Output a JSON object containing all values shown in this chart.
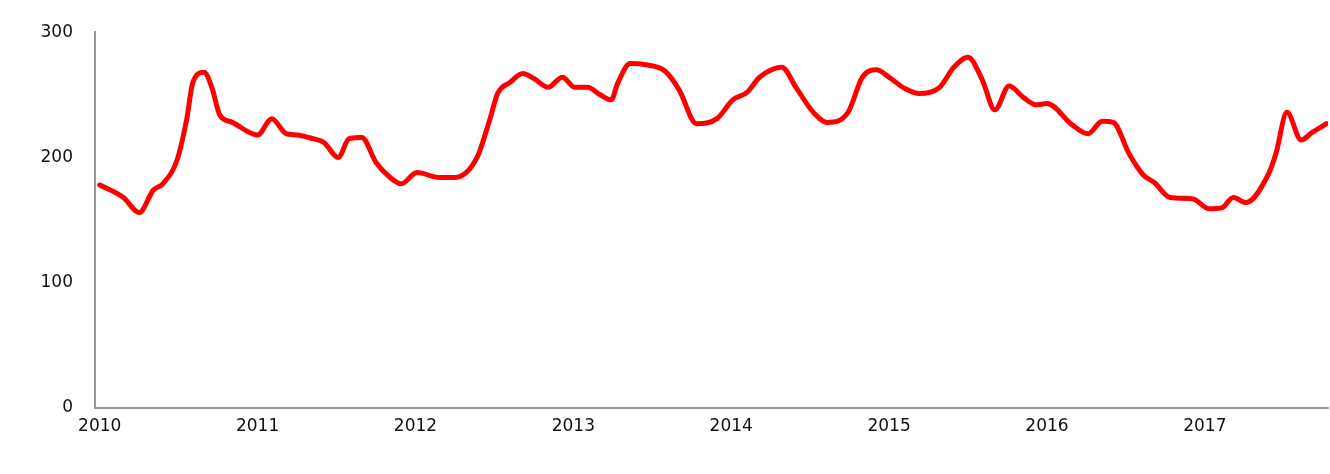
{
  "chart_data": {
    "type": "line",
    "x": [
      2010.0,
      2010.15,
      2010.25,
      2010.34,
      2010.4,
      2010.49,
      2010.55,
      2010.59,
      2010.66,
      2010.71,
      2010.76,
      2010.84,
      2011.0,
      2011.09,
      2011.18,
      2011.25,
      2011.35,
      2011.42,
      2011.51,
      2011.58,
      2011.66,
      2011.75,
      2011.84,
      2011.91,
      2012.01,
      2012.15,
      2012.25,
      2012.39,
      2012.47,
      2012.52,
      2012.6,
      2012.68,
      2012.75,
      2012.84,
      2012.93,
      2013.01,
      2013.09,
      2013.17,
      2013.24,
      2013.28,
      2013.36,
      2013.46,
      2013.58,
      2013.67,
      2013.78,
      2013.91,
      2014.01,
      2014.1,
      2014.18,
      2014.32,
      2014.41,
      2014.52,
      2014.61,
      2014.74,
      2014.83,
      2014.92,
      2015.0,
      2015.1,
      2015.19,
      2015.32,
      2015.41,
      2015.5,
      2015.59,
      2015.67,
      2015.76,
      2015.85,
      2015.93,
      2016.0,
      2016.16,
      2016.26,
      2016.35,
      2016.42,
      2016.52,
      2016.61,
      2016.68,
      2016.78,
      2016.92,
      2017.03,
      2017.11,
      2017.18,
      2017.26,
      2017.4,
      2017.45,
      2017.52,
      2017.61,
      2017.68,
      2017.77
    ],
    "series": [
      {
        "color": "#ff0000",
        "values": [
          178,
          168,
          156,
          174,
          179,
          198,
          230,
          260,
          268,
          256,
          234,
          228,
          218,
          231,
          219,
          218,
          215,
          212,
          200,
          215,
          216,
          196,
          184,
          179,
          188,
          184,
          184,
          200,
          230,
          251,
          260,
          267,
          263,
          256,
          264,
          256,
          256,
          250,
          246,
          259,
          275,
          274,
          269,
          254,
          227,
          231,
          246,
          252,
          264,
          272,
          256,
          236,
          228,
          236,
          264,
          270,
          264,
          255,
          251,
          256,
          272,
          280,
          262,
          238,
          257,
          248,
          242,
          243,
          226,
          219,
          229,
          228,
          203,
          186,
          180,
          168,
          167,
          159,
          160,
          168,
          164,
          186,
          203,
          236,
          214,
          220,
          227
        ]
      }
    ],
    "xlim": [
      2009.97,
      2017.78
    ],
    "xticks": [
      2010,
      2011,
      2012,
      2013,
      2014,
      2015,
      2016,
      2017
    ],
    "ylim": [
      0,
      300
    ],
    "yticks": [
      0,
      100,
      200,
      300
    ],
    "grid": false,
    "legend": false,
    "marker": "none",
    "line_style": "solid"
  }
}
